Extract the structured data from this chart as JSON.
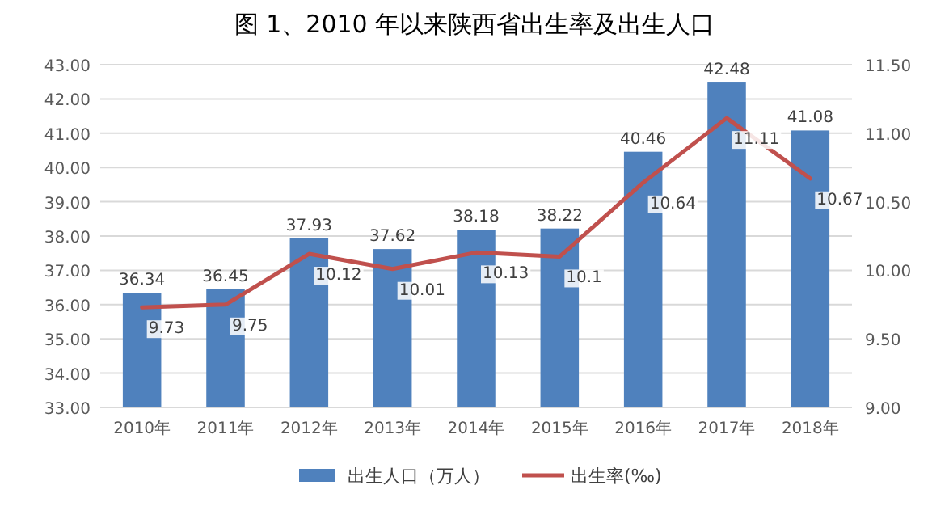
{
  "chart_data": {
    "type": "bar",
    "title": "图 1、2010 年以来陕西省出生率及出生人口",
    "categories": [
      "2010年",
      "2011年",
      "2012年",
      "2013年",
      "2014年",
      "2015年",
      "2016年",
      "2017年",
      "2018年"
    ],
    "series": [
      {
        "name": "出生人口（万人）",
        "type": "bar",
        "color": "#4f81bd",
        "values": [
          36.34,
          36.45,
          37.93,
          37.62,
          38.18,
          38.22,
          40.46,
          42.48,
          41.08
        ]
      },
      {
        "name": "出生率(‰)",
        "type": "line",
        "axis": "y2",
        "color": "#c0504d",
        "values": [
          9.73,
          9.75,
          10.12,
          10.01,
          10.13,
          10.1,
          10.64,
          11.11,
          10.67
        ]
      }
    ],
    "ylim": [
      33,
      43
    ],
    "yticks": [
      {
        "value": 33,
        "label": "33.00"
      },
      {
        "value": 34,
        "label": "34.00"
      },
      {
        "value": 35,
        "label": "35.00"
      },
      {
        "value": 36,
        "label": "36.00"
      },
      {
        "value": 37,
        "label": "37.00"
      },
      {
        "value": 38,
        "label": "38.00"
      },
      {
        "value": 39,
        "label": "39.00"
      },
      {
        "value": 40,
        "label": "40.00"
      },
      {
        "value": 41,
        "label": "41.00"
      },
      {
        "value": 42,
        "label": "42.00"
      },
      {
        "value": 43,
        "label": "43.00"
      }
    ],
    "y2lim": [
      9,
      11.5
    ],
    "y2ticks": [
      {
        "value": 9,
        "label": "9.00"
      },
      {
        "value": 9.5,
        "label": "9.50"
      },
      {
        "value": 10,
        "label": "10.00"
      },
      {
        "value": 10.5,
        "label": "10.50"
      },
      {
        "value": 11,
        "label": "11.00"
      },
      {
        "value": 11.5,
        "label": "11.50"
      }
    ],
    "grid": "y",
    "legend": "bottom",
    "data_labels": true,
    "marker": "none"
  }
}
